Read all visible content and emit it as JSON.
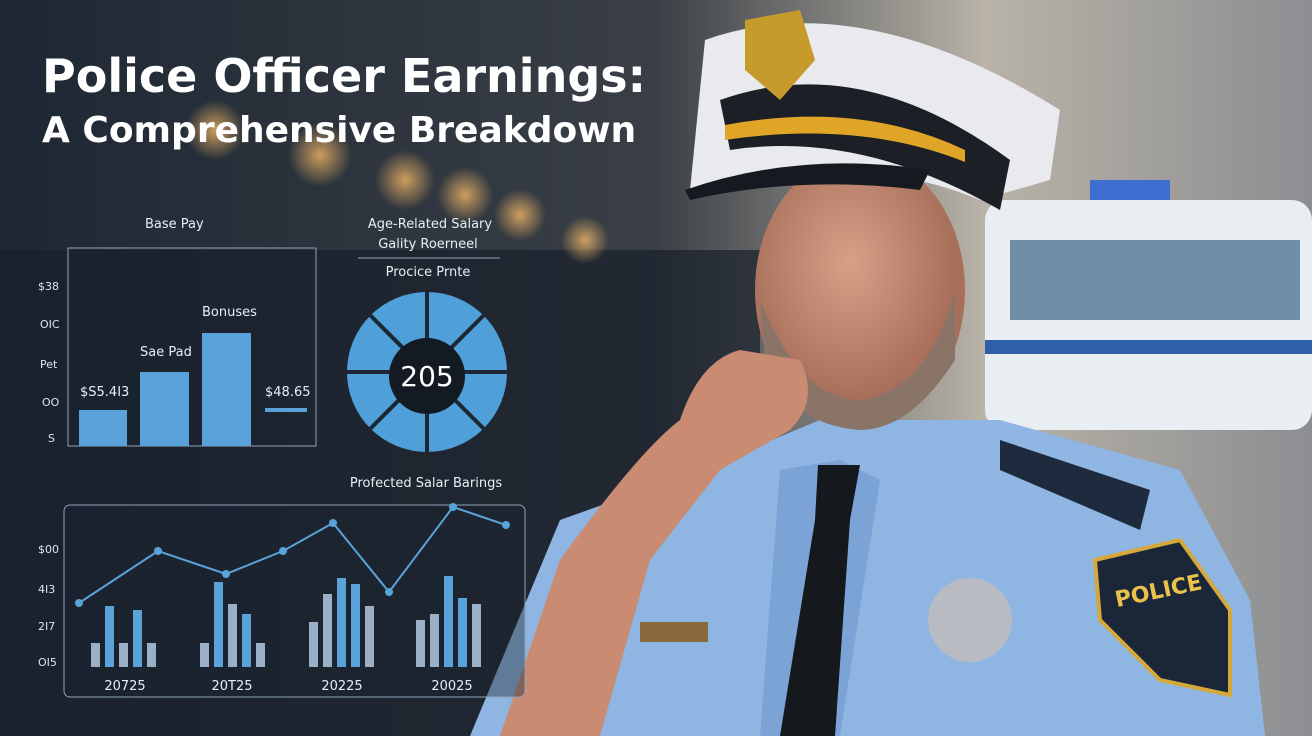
{
  "header": {
    "title": "Police Officer Earnings:",
    "subtitle": "A Comprehensive Breakdown"
  },
  "bar_panel": {
    "title": "Base Pay",
    "y_labels": [
      "$38",
      "OIC",
      "Pet",
      "OO",
      "S"
    ],
    "labels": [
      "Bonuses",
      "Sae Pad",
      "$S5.4I3",
      "$48.65"
    ]
  },
  "donut_panel": {
    "title_lines": [
      "Age-Related Salary",
      "Gality Roerneel"
    ],
    "subtitle": "Procice Prnte",
    "center": "205"
  },
  "line_panel": {
    "title": "Profected Salar Barings",
    "y_labels": [
      "$00",
      "4I3",
      "2I7",
      "OI5"
    ],
    "x_labels": [
      "20725",
      "20T25",
      "20225",
      "20025"
    ]
  }
}
